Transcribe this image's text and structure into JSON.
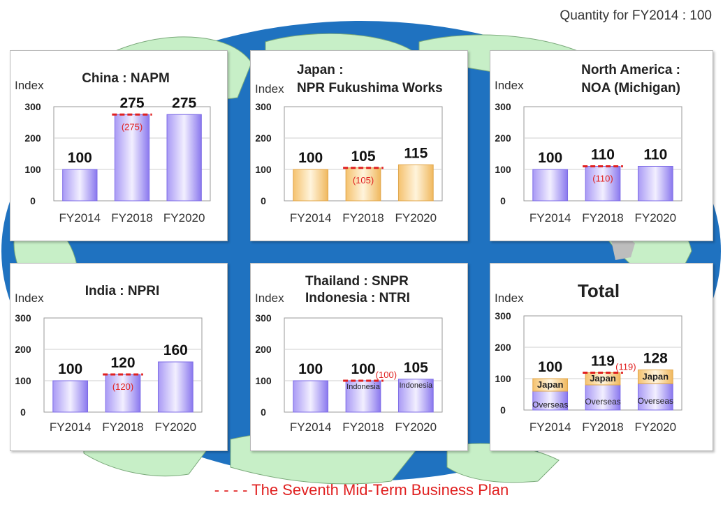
{
  "header": {
    "note": "Quantity for FY2014 : 100"
  },
  "footer": {
    "legend_marker": "- - - -",
    "legend_text": "The Seventh Mid-Term Business Plan"
  },
  "colors": {
    "purple_bar": "#9c8cf2",
    "orange_bar": "#f8d08a",
    "plan_line": "#e02020",
    "ocean": "#1f72c0",
    "land": "#c7efc7"
  },
  "chart_data": [
    {
      "type": "bar",
      "title_lines": [
        "China : NAPM"
      ],
      "ylabel": "Index",
      "yticks": [
        0,
        100,
        200,
        300
      ],
      "ylim": [
        0,
        300
      ],
      "categories": [
        "FY2014",
        "FY2018",
        "FY2020"
      ],
      "values": [
        100,
        275,
        275
      ],
      "bar_color": "purple",
      "plan": {
        "category": "FY2018",
        "value": 275,
        "label": "(275)"
      }
    },
    {
      "type": "bar",
      "title_lines": [
        "Japan :",
        "NPR Fukushima  Works"
      ],
      "ylabel": "Index",
      "yticks": [
        0,
        100,
        200,
        300
      ],
      "ylim": [
        0,
        300
      ],
      "categories": [
        "FY2014",
        "FY2018",
        "FY2020"
      ],
      "values": [
        100,
        105,
        115
      ],
      "bar_color": "orange",
      "plan": {
        "category": "FY2018",
        "value": 105,
        "label": "(105)"
      }
    },
    {
      "type": "bar",
      "title_lines": [
        "North America :",
        "NOA (Michigan)"
      ],
      "ylabel": "Index",
      "yticks": [
        0,
        100,
        200,
        300
      ],
      "ylim": [
        0,
        300
      ],
      "categories": [
        "FY2014",
        "FY2018",
        "FY2020"
      ],
      "values": [
        100,
        110,
        110
      ],
      "bar_color": "purple",
      "plan": {
        "category": "FY2018",
        "value": 110,
        "label": "(110)"
      }
    },
    {
      "type": "bar",
      "title_lines": [
        "India : NPRI"
      ],
      "ylabel": "Index",
      "yticks": [
        0,
        100,
        200,
        300
      ],
      "ylim": [
        0,
        300
      ],
      "categories": [
        "FY2014",
        "FY2018",
        "FY2020"
      ],
      "values": [
        100,
        120,
        160
      ],
      "bar_color": "purple",
      "plan": {
        "category": "FY2018",
        "value": 120,
        "label": "(120)"
      }
    },
    {
      "type": "bar",
      "title_lines": [
        "Thailand : SNPR",
        "Indonesia : NTRI"
      ],
      "ylabel": "Index",
      "yticks": [
        0,
        100,
        200,
        300
      ],
      "ylim": [
        0,
        300
      ],
      "categories": [
        "FY2014",
        "FY2018",
        "FY2020"
      ],
      "values": [
        100,
        100,
        105
      ],
      "bar_color": "purple",
      "inner_labels": [
        "",
        "Indonesia",
        "Indonesia"
      ],
      "plan": {
        "category": "FY2018",
        "value": 100,
        "label": "(100)"
      }
    },
    {
      "type": "stacked_bar",
      "title_lines": [
        "Total"
      ],
      "ylabel": "Index",
      "yticks": [
        0,
        100,
        200,
        300
      ],
      "ylim": [
        0,
        300
      ],
      "categories": [
        "FY2014",
        "FY2018",
        "FY2020"
      ],
      "totals": [
        100,
        119,
        128
      ],
      "series": [
        {
          "name": "Overseas",
          "values": [
            60,
            80,
            84
          ],
          "color": "purple"
        },
        {
          "name": "Japan",
          "values": [
            40,
            39,
            44
          ],
          "color": "orange"
        }
      ],
      "plan": {
        "category": "FY2018",
        "value": 119,
        "label": "(119)"
      }
    }
  ]
}
